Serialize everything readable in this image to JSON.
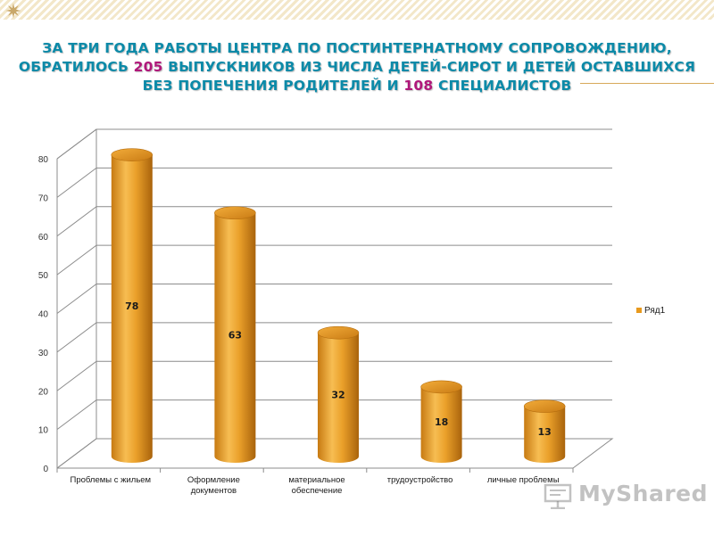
{
  "slide": {
    "title_part1": "За три года работы центра по постинтернатному сопровождению, обратилось ",
    "title_num1": "205",
    "title_part2": " выпускников из числа детей-сирот и детей оставшихся без попечения родителей и ",
    "title_num2": "108",
    "title_part3": " специалистов"
  },
  "watermark": {
    "text": "MyShared",
    "icon": "presentation-board-icon"
  },
  "colors": {
    "title": "#0c8aa8",
    "title_highlight": "#b0177a",
    "bar_light": "#f6b84a",
    "bar_mid": "#e89a1e",
    "bar_dark": "#b86d0c",
    "grid": "#8c8c8c"
  },
  "chart_data": {
    "type": "bar",
    "style": "3d-cylinder",
    "categories": [
      [
        "Проблемы с жильем"
      ],
      [
        "Оформление",
        "документов"
      ],
      [
        "материальное",
        "обеспечение"
      ],
      [
        "трудоустройство"
      ],
      [
        "личные проблемы"
      ]
    ],
    "series": [
      {
        "name": "Ряд1",
        "values": [
          78,
          63,
          32,
          18,
          13
        ]
      }
    ],
    "data_labels": [
      "78",
      "63",
      "32",
      "18",
      "13"
    ],
    "ylim": [
      0,
      80
    ],
    "yticks": [
      0,
      10,
      20,
      30,
      40,
      50,
      60,
      70,
      80
    ],
    "grid": true,
    "legend": "right"
  }
}
